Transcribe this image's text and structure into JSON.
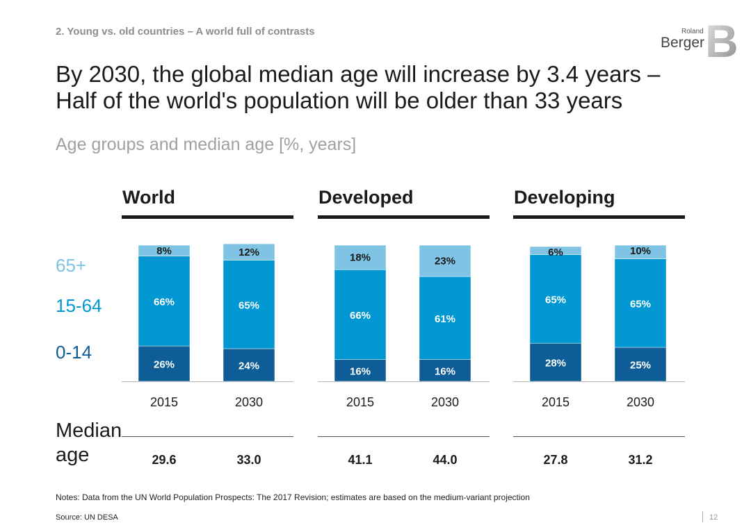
{
  "header": {
    "kicker": "2. Young vs. old countries – A world full of contrasts",
    "title": "By 2030, the global median age will increase by 3.4 years – Half of the world's population will be older than 33 years",
    "subtitle": "Age groups and median age [%, years]"
  },
  "logo": {
    "top_text": "Roland",
    "bottom_text": "Berger",
    "letter": "B"
  },
  "legend": {
    "items": [
      {
        "label": "65+",
        "color": "#7fc4e4"
      },
      {
        "label": "15-64",
        "color": "#0097d2"
      },
      {
        "label": "0-14",
        "color": "#0e5d96"
      }
    ]
  },
  "median": {
    "label": "Median age"
  },
  "footer": {
    "notes": "Notes: Data from the UN World Population Prospects: The 2017 Revision; estimates are based on the medium-variant projection",
    "source": "Source: UN DESA",
    "page": "12"
  },
  "chart_data": {
    "type": "bar",
    "stacked": true,
    "unit": "%",
    "ylim": [
      0,
      100
    ],
    "colors": {
      "0-14": "#0e5d96",
      "15-64": "#0097d2",
      "65+": "#7fc4e4",
      "65+_label": "#1a1a1a"
    },
    "segments": [
      "0-14",
      "15-64",
      "65+"
    ],
    "groups": [
      {
        "name": "World",
        "bars": [
          {
            "year": "2015",
            "values": [
              26,
              66,
              8
            ],
            "labels": [
              "26%",
              "66%",
              "8%"
            ],
            "median": "29.6"
          },
          {
            "year": "2030",
            "values": [
              24,
              65,
              12
            ],
            "labels": [
              "24%",
              "65%",
              "12%"
            ],
            "median": "33.0"
          }
        ]
      },
      {
        "name": "Developed",
        "bars": [
          {
            "year": "2015",
            "values": [
              16,
              66,
              18
            ],
            "labels": [
              "16%",
              "66%",
              "18%"
            ],
            "median": "41.1"
          },
          {
            "year": "2030",
            "values": [
              16,
              61,
              23
            ],
            "labels": [
              "16%",
              "61%",
              "23%"
            ],
            "median": "44.0"
          }
        ]
      },
      {
        "name": "Developing",
        "bars": [
          {
            "year": "2015",
            "values": [
              28,
              65,
              6
            ],
            "labels": [
              "28%",
              "65%",
              "6%"
            ],
            "median": "27.8"
          },
          {
            "year": "2030",
            "values": [
              25,
              65,
              10
            ],
            "labels": [
              "25%",
              "65%",
              "10%"
            ],
            "median": "31.2"
          }
        ]
      }
    ]
  }
}
